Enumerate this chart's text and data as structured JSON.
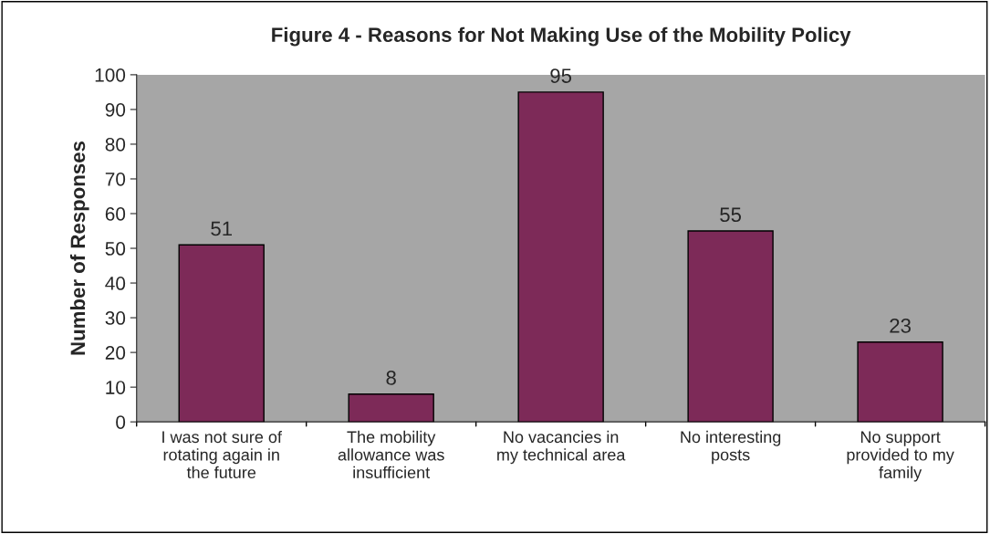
{
  "chart_data": {
    "type": "bar",
    "title": "Figure 4 - Reasons for Not Making Use of the Mobility Policy",
    "ylabel": "Number of Responses",
    "categories": [
      "I was not sure of\nrotating again in\nthe future",
      "The mobility\nallowance was\ninsufficient",
      "No vacancies in\nmy technical area",
      "No interesting\nposts",
      "No support\nprovided to my\nfamily"
    ],
    "values": [
      51,
      8,
      95,
      55,
      23
    ],
    "color": "#7d2a58",
    "ylim": [
      0,
      100
    ],
    "yticks": [
      0,
      10,
      20,
      30,
      40,
      50,
      60,
      70,
      80,
      90,
      100
    ],
    "grid": false,
    "data_labels": true,
    "legend": false
  }
}
